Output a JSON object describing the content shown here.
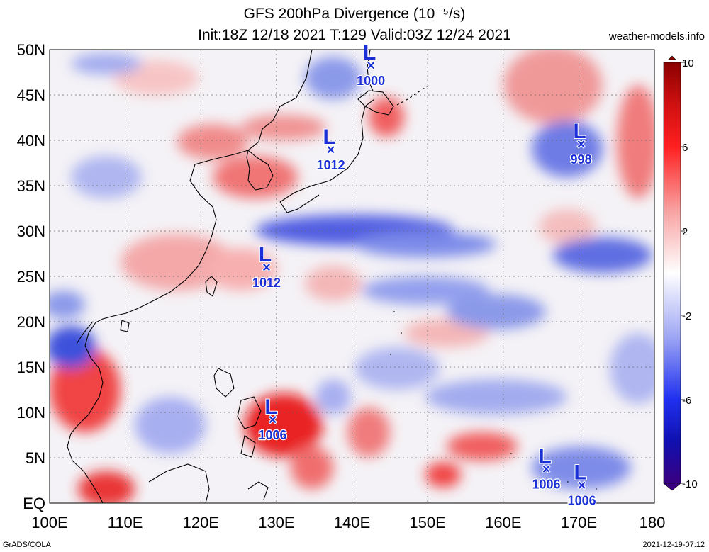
{
  "title": {
    "line1": "GFS 200hPa Divergence (10⁻⁵/s)",
    "line2": "Init:18Z 12/18 2021 T:129 Valid:03Z 12/24 2021"
  },
  "credit": "weather-models.info",
  "footer": {
    "left": "GrADS/COLA",
    "right": "2021-12-19-07:12"
  },
  "colors": {
    "strong_pos": "#e00000",
    "pos": "#f07070",
    "weak_pos": "#f8c0c0",
    "neutral": "#f4f4f8",
    "weak_neg": "#c0c8f4",
    "neg": "#7080e8",
    "strong_neg": "#2030d0",
    "low_marker": "#1a2fd6"
  },
  "map": {
    "lon_ticks": [
      "100E",
      "110E",
      "120E",
      "130E",
      "140E",
      "150E",
      "160E",
      "170E",
      "180"
    ],
    "lat_ticks": [
      "50N",
      "45N",
      "40N",
      "35N",
      "30N",
      "25N",
      "20N",
      "15N",
      "10N",
      "5N",
      "EQ"
    ],
    "lon_range": [
      100,
      180
    ],
    "lat_range": [
      0,
      50
    ],
    "grid": true,
    "lows": [
      {
        "label": "L",
        "lon": 142.5,
        "lat": 48.3,
        "pressure": "1000"
      },
      {
        "label": "L",
        "lon": 137.2,
        "lat": 39.0,
        "pressure": "1012"
      },
      {
        "label": "L",
        "lon": 170.3,
        "lat": 39.6,
        "pressure": "998"
      },
      {
        "label": "L",
        "lon": 128.7,
        "lat": 26.0,
        "pressure": "1012"
      },
      {
        "label": "L",
        "lon": 129.5,
        "lat": 9.2,
        "pressure": "1006"
      },
      {
        "label": "L",
        "lon": 165.7,
        "lat": 3.8,
        "pressure": "1006"
      },
      {
        "label": "L",
        "lon": 170.4,
        "lat": 2.0,
        "pressure": "1006"
      }
    ]
  },
  "colorbar": {
    "labels": [
      "10",
      "6",
      "2",
      "-2",
      "-6",
      "-10"
    ]
  }
}
